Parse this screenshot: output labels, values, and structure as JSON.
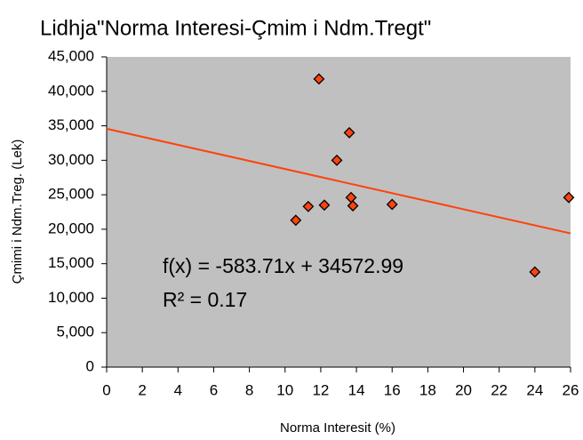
{
  "chart_data": {
    "type": "scatter",
    "title": "Lidhja\"Norma Interesi-Çmim i Ndm.Tregt\"",
    "xlabel": "Norma Interesit (%)",
    "ylabel": "Çmimi i Ndm.Treg. (Lek)",
    "x": [
      10.6,
      11.3,
      11.9,
      12.2,
      12.9,
      13.6,
      13.7,
      13.8,
      16.0,
      24.0,
      25.9
    ],
    "values": [
      21300,
      23300,
      41800,
      23500,
      30000,
      34000,
      24600,
      23400,
      23600,
      13800,
      24600
    ],
    "color": "#ff420e",
    "trendline": {
      "slope": -583.71,
      "intercept": 34572.99,
      "color": "#ff420e",
      "equation": "f(x) = -583.71x + 34572.99",
      "r2": "R² = 0.17"
    },
    "xlim": [
      0,
      26
    ],
    "xticks": [
      0,
      2,
      4,
      6,
      8,
      10,
      12,
      14,
      16,
      18,
      20,
      22,
      24,
      26
    ],
    "ylim": [
      0,
      45000
    ],
    "yticks": [
      0,
      {
        "value": 5000,
        "label": "5,000"
      },
      {
        "value": 10000,
        "label": "10,000"
      },
      {
        "value": 15000,
        "label": "15,000"
      },
      {
        "value": 20000,
        "label": "20,000"
      },
      {
        "value": 25000,
        "label": "25,000"
      },
      {
        "value": 30000,
        "label": "30,000"
      },
      {
        "value": 35000,
        "label": "35,000"
      },
      {
        "value": 40000,
        "label": "40,000"
      },
      {
        "value": 45000,
        "label": "45,000"
      }
    ],
    "grid": false
  }
}
